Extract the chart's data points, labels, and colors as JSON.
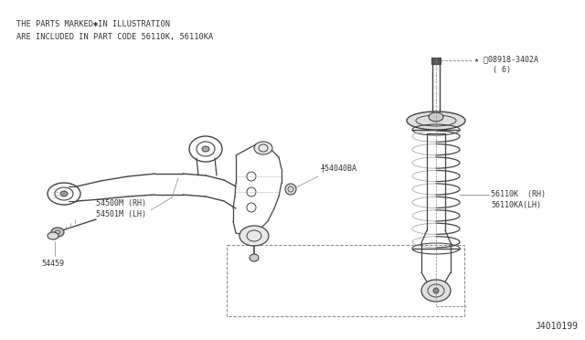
{
  "bg_color": "#ffffff",
  "fig_width": 6.4,
  "fig_height": 3.72,
  "dpi": 100,
  "header_line1": "THE PARTS MARKED✱IN ILLUSTRATION",
  "header_line2": "ARE INCLUDED IN PART CODE 56110K, 56110KA",
  "header_fontsize": 6.2,
  "header_color": "#333333",
  "diagram_id": "J4010199",
  "diagram_id_fontsize": 7,
  "line_color": "#444444",
  "dashed_color": "#888888",
  "annotation_fontsize": 5.8
}
